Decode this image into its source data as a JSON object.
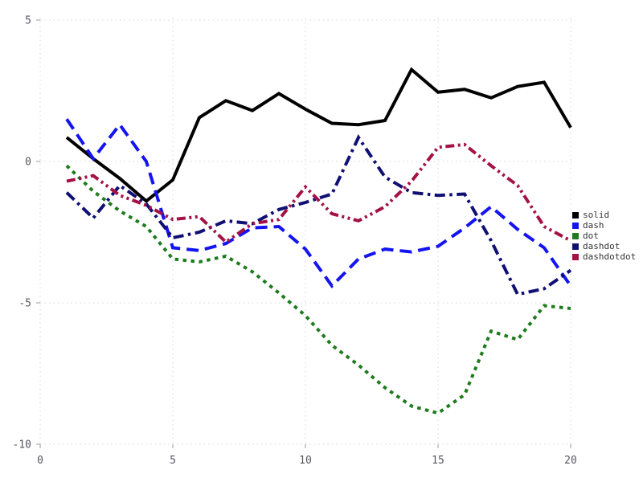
{
  "chart_data": {
    "type": "line",
    "title": "",
    "xlabel": "",
    "ylabel": "",
    "x": [
      1,
      2,
      3,
      4,
      5,
      6,
      7,
      8,
      9,
      10,
      11,
      12,
      13,
      14,
      15,
      16,
      17,
      18,
      19,
      20
    ],
    "series": [
      {
        "name": "solid",
        "line_style": "solid",
        "color": "#000000",
        "values": [
          0.85,
          0.1,
          -0.6,
          -1.4,
          -0.65,
          1.55,
          2.15,
          1.8,
          2.4,
          1.85,
          1.35,
          1.3,
          1.45,
          3.25,
          2.45,
          2.55,
          2.25,
          2.65,
          2.8,
          1.2
        ]
      },
      {
        "name": "dash",
        "line_style": "dash",
        "color": "#1414f0",
        "values": [
          1.5,
          0.1,
          1.3,
          0.0,
          -3.05,
          -3.15,
          -2.9,
          -2.35,
          -2.3,
          -3.1,
          -4.4,
          -3.45,
          -3.1,
          -3.2,
          -3.0,
          -2.35,
          -1.6,
          -2.4,
          -3.05,
          -4.4
        ]
      },
      {
        "name": "dot",
        "line_style": "dot",
        "color": "#1e7b1e",
        "values": [
          -0.15,
          -1.05,
          -1.75,
          -2.3,
          -3.45,
          -3.55,
          -3.35,
          -3.9,
          -4.65,
          -5.45,
          -6.5,
          -7.2,
          -8.0,
          -8.65,
          -8.9,
          -8.25,
          -6.0,
          -6.3,
          -5.1,
          -5.2
        ]
      },
      {
        "name": "dashdot",
        "line_style": "dashdot",
        "color": "#101074",
        "values": [
          -1.1,
          -2.0,
          -0.85,
          -1.5,
          -2.7,
          -2.5,
          -2.1,
          -2.2,
          -1.7,
          -1.45,
          -1.15,
          0.85,
          -0.55,
          -1.1,
          -1.2,
          -1.15,
          -2.8,
          -4.7,
          -4.5,
          -3.85
        ]
      },
      {
        "name": "dashdotdot",
        "line_style": "dashdotdot",
        "color": "#a31245",
        "values": [
          -0.7,
          -0.5,
          -1.2,
          -1.55,
          -2.05,
          -1.95,
          -2.85,
          -2.2,
          -2.05,
          -0.9,
          -1.85,
          -2.1,
          -1.6,
          -0.7,
          0.5,
          0.6,
          -0.15,
          -0.85,
          -2.3,
          -2.8
        ]
      }
    ],
    "x_ticks": [
      0,
      5,
      10,
      15,
      20
    ],
    "y_ticks": [
      5,
      0,
      -5,
      -10
    ],
    "x_tick_labels": [
      "0",
      "5",
      "10",
      "15",
      "20"
    ],
    "y_tick_labels": [
      "5",
      "0",
      "-5",
      "-10"
    ],
    "xlim": [
      0,
      20
    ],
    "ylim": [
      -10,
      5
    ],
    "grid": "dotted",
    "legend_position": "right",
    "legend_entries": [
      "solid",
      "dash",
      "dot",
      "dashdot",
      "dashdotdot"
    ]
  },
  "style": {
    "grid_color": "#d6d6e2",
    "tick_label_color": "#555560",
    "legend_text_color": "#333333",
    "background_color": "#ffffff"
  }
}
